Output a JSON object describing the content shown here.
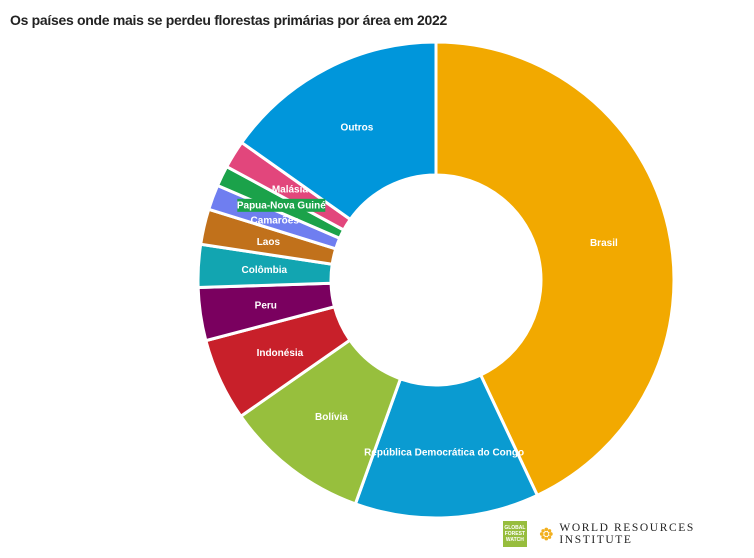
{
  "chart_data": {
    "type": "pie",
    "variant": "donut",
    "title": "Os países onde mais se perdeu florestas primárias por área em 2022",
    "unit": "percent share (estimated)",
    "slices": [
      {
        "label": "Brasil",
        "value": 43.0,
        "color": "#F2A900"
      },
      {
        "label": "República Democrática do Congo",
        "value": 12.5,
        "color": "#0A9BD1"
      },
      {
        "label": "Bolívia",
        "value": 9.8,
        "color": "#97BF3D"
      },
      {
        "label": "Indonésia",
        "value": 5.6,
        "color": "#C8202A"
      },
      {
        "label": "Peru",
        "value": 3.6,
        "color": "#7A005F"
      },
      {
        "label": "Colômbia",
        "value": 2.9,
        "color": "#12A5B1"
      },
      {
        "label": "Laos",
        "value": 2.4,
        "color": "#C1711B"
      },
      {
        "label": "Camarões",
        "value": 1.7,
        "color": "#6F7EF0"
      },
      {
        "label": "Papua-Nova Guiné",
        "value": 1.4,
        "color": "#1BA24A"
      },
      {
        "label": "Malásia",
        "value": 1.9,
        "color": "#E2467C"
      },
      {
        "label": "Outros",
        "value": 15.2,
        "color": "#0096DB"
      }
    ]
  },
  "logos": {
    "gfw_lines": [
      "GLOBAL",
      "FOREST",
      "WATCH"
    ],
    "wri": "WORLD RESOURCES INSTITUTE"
  }
}
